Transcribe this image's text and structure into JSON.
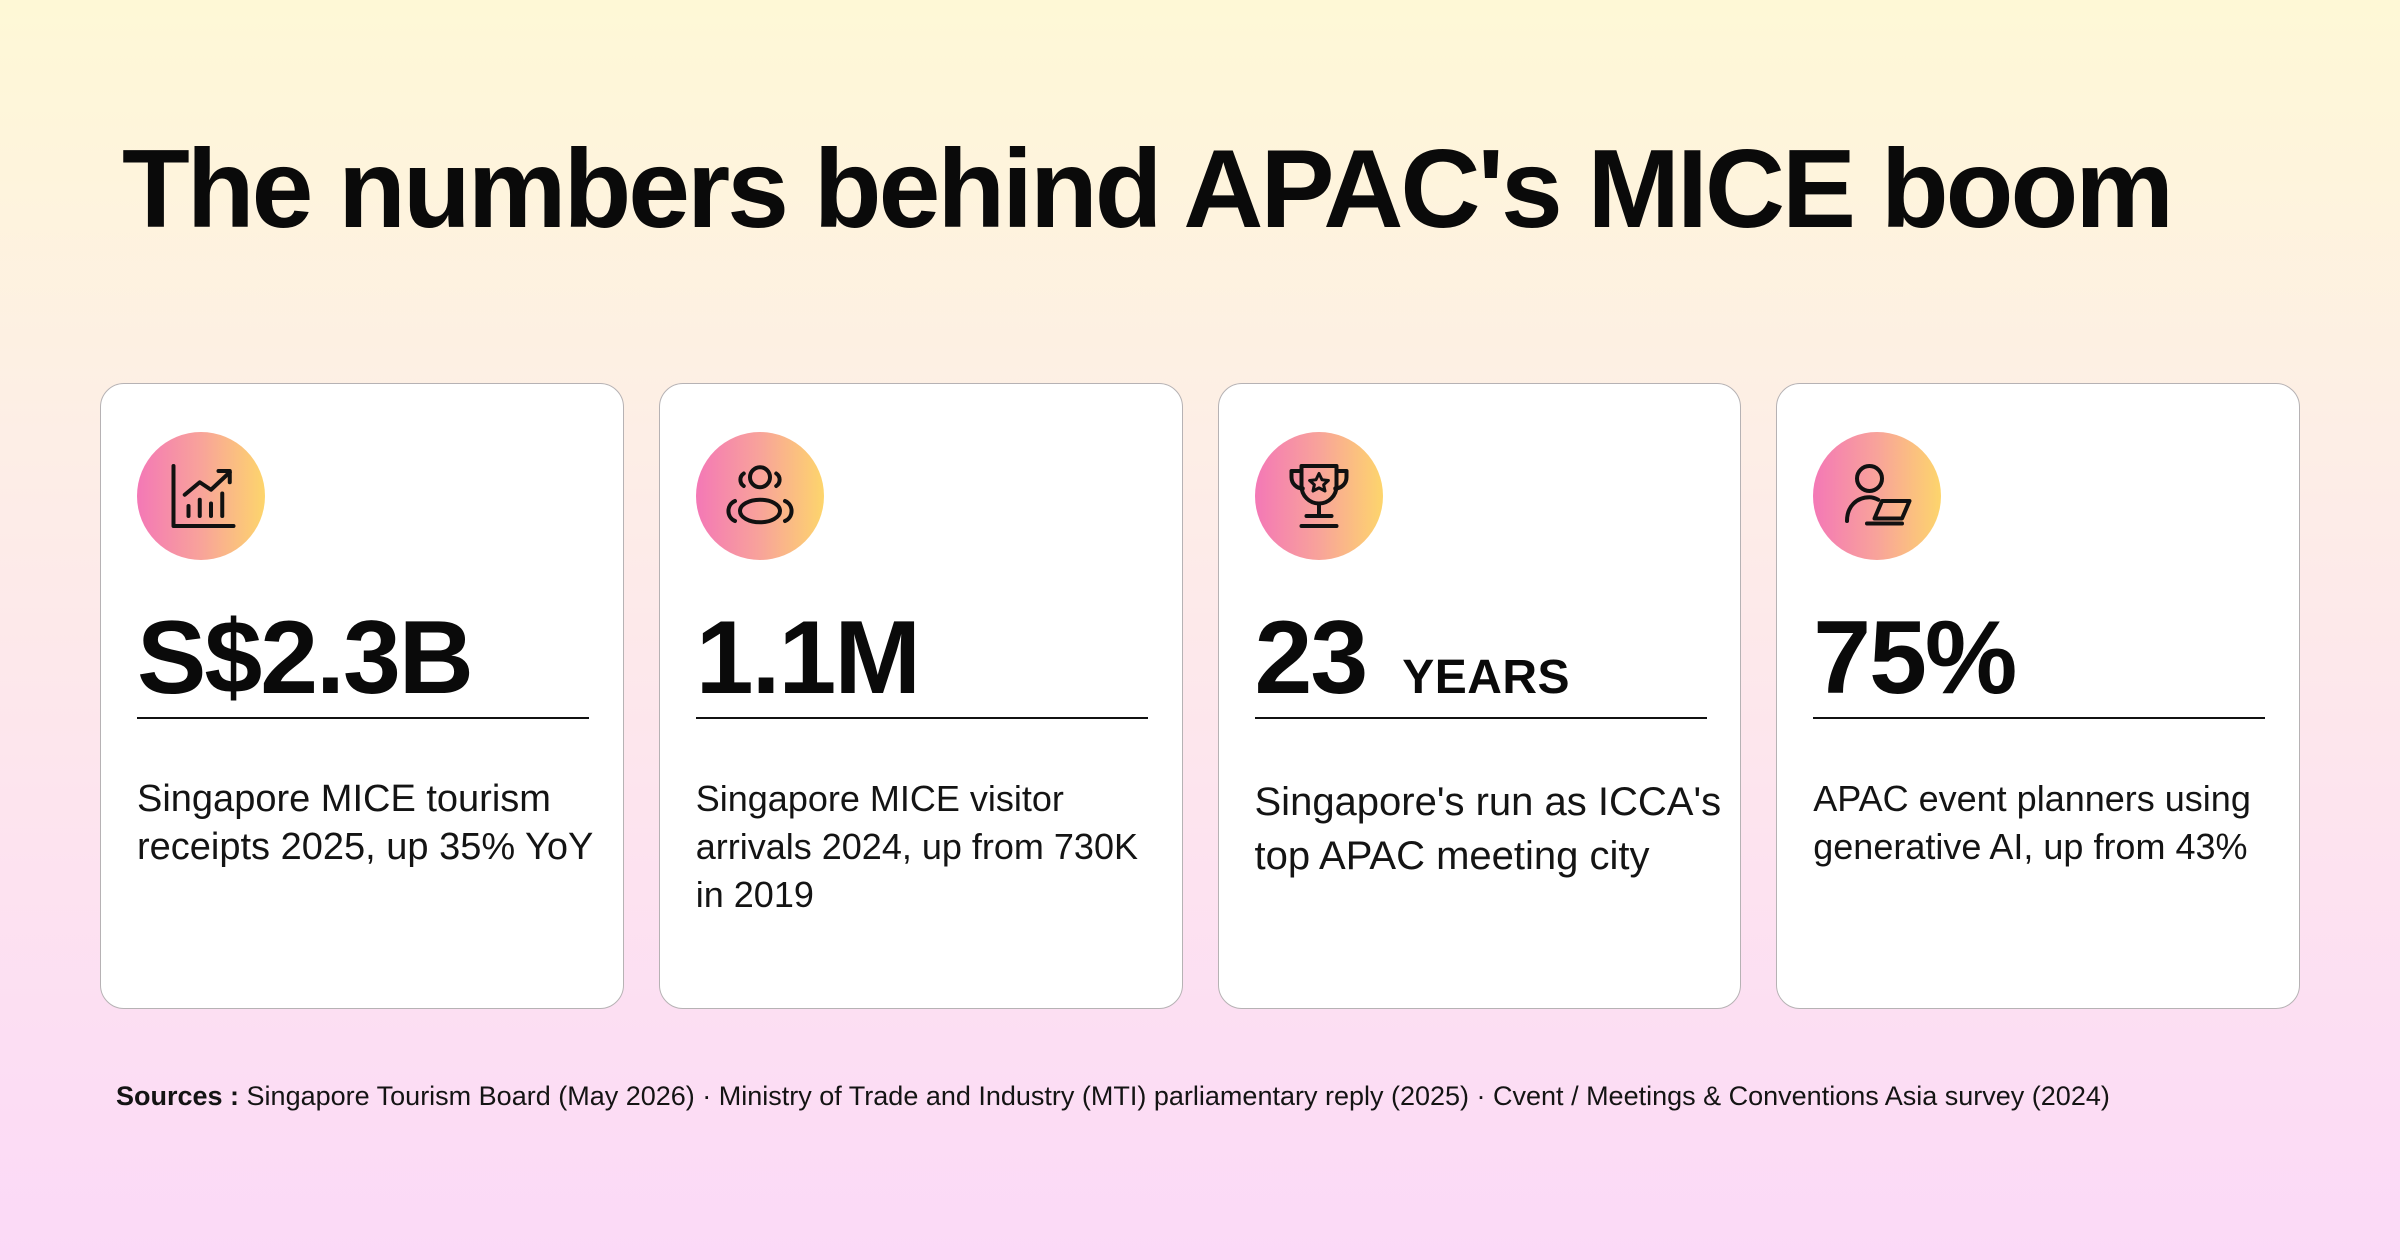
{
  "title": "The numbers behind APAC's MICE boom",
  "cards": [
    {
      "icon": "chart-growth-icon",
      "value": "S$2.3B",
      "unit": "",
      "description": "Singapore MICE tourism receipts 2025, up 35% YoY"
    },
    {
      "icon": "people-group-icon",
      "value": "1.1M",
      "unit": "",
      "description": "Singapore MICE visitor arrivals 2024, up from 730K in 2019"
    },
    {
      "icon": "trophy-icon",
      "value": "23",
      "unit": "YEARS",
      "description": "Singapore's run as ICCA's top APAC meeting city"
    },
    {
      "icon": "user-laptop-icon",
      "value": "75%",
      "unit": "",
      "description": "APAC event planners using generative AI, up from 43%"
    }
  ],
  "sources": {
    "label": "Sources :",
    "text": " Singapore Tourism Board (May 2026) · Ministry of Trade and Industry (MTI) parliamentary reply (2025) · Cvent / Meetings & Conventions Asia survey (2024)"
  },
  "colors": {
    "gradient_start": "#f478b6",
    "gradient_mid": "#f8a39a",
    "gradient_end": "#fdd56c",
    "card_border": "#b6b2b4",
    "text": "#0a0a0a"
  }
}
